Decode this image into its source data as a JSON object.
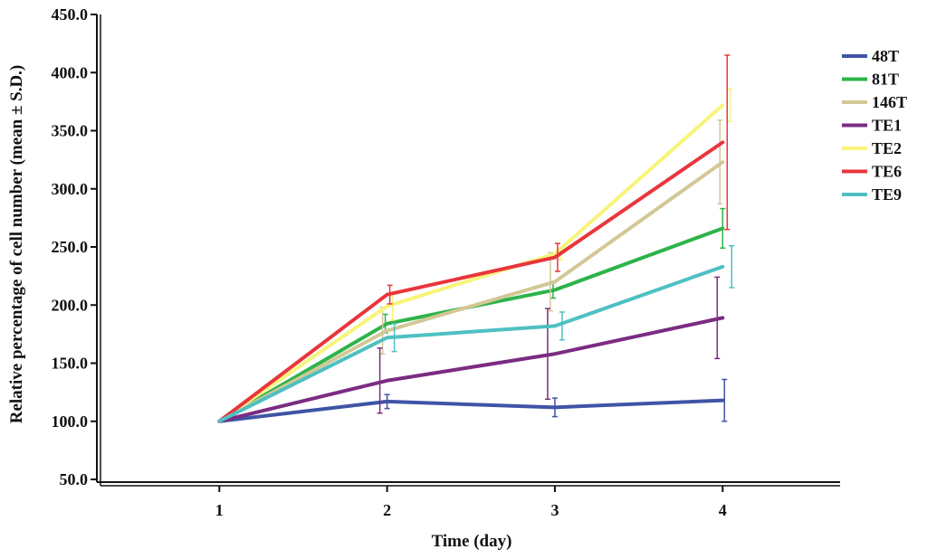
{
  "chart_data": {
    "type": "line",
    "title": "",
    "xlabel": "Time (day)",
    "ylabel": "Relative percentage of cell number (mean ± S.D.)",
    "x": [
      1,
      2,
      3,
      4
    ],
    "x_tick_labels": [
      "1",
      "2",
      "3",
      "4"
    ],
    "xlim": [
      0.27,
      4.7
    ],
    "ylim": [
      50,
      450
    ],
    "y_tick_labels": [
      "50.0",
      "100.0",
      "150.0",
      "200.0",
      "250.0",
      "300.0",
      "350.0",
      "400.0",
      "450.0"
    ],
    "y_ticks": [
      50,
      100,
      150,
      200,
      250,
      300,
      350,
      400,
      450
    ],
    "legend_position": "right",
    "grid": false,
    "series": [
      {
        "name": "48T",
        "color": "#3f54a6",
        "values": [
          100,
          117,
          112,
          118
        ],
        "err": [
          0,
          6,
          8,
          18
        ]
      },
      {
        "name": "81T",
        "color": "#2db34a",
        "values": [
          100,
          184,
          213,
          266
        ],
        "err": [
          0,
          8,
          7,
          17
        ]
      },
      {
        "name": "146T",
        "color": "#d2c896",
        "values": [
          100,
          178,
          220,
          323
        ],
        "err": [
          0,
          20,
          25,
          36
        ]
      },
      {
        "name": "TE1",
        "color": "#7b2c82",
        "values": [
          100,
          135,
          158,
          189
        ],
        "err": [
          0,
          28,
          39,
          35
        ]
      },
      {
        "name": "TE2",
        "color": "#f8f47a",
        "values": [
          100,
          199,
          244,
          372
        ],
        "err": [
          0,
          12,
          5,
          14
        ]
      },
      {
        "name": "TE6",
        "color": "#e8363c",
        "values": [
          100,
          209,
          241,
          340
        ],
        "err": [
          0,
          8,
          12,
          75
        ]
      },
      {
        "name": "TE9",
        "color": "#4ec0c2",
        "values": [
          100,
          172,
          182,
          233
        ],
        "err": [
          0,
          12,
          12,
          18
        ]
      }
    ]
  }
}
